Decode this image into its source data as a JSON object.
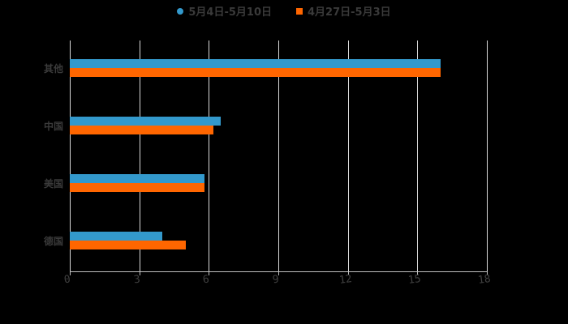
{
  "legend": [
    {
      "label": "5月4日-5月10日",
      "color": "#3399cc",
      "shape": "circle"
    },
    {
      "label": "4月27日-5月3日",
      "color": "#ff6600",
      "shape": "square"
    }
  ],
  "chart_data": {
    "type": "bar",
    "orientation": "horizontal",
    "title": "",
    "categories": [
      "其他",
      "中国",
      "美国",
      "德国"
    ],
    "series": [
      {
        "name": "5月4日-5月10日",
        "color": "#3399cc",
        "values": [
          16,
          6.5,
          5.8,
          4
        ]
      },
      {
        "name": "4月27日-5月3日",
        "color": "#ff6600",
        "values": [
          16,
          6.2,
          5.8,
          5
        ]
      }
    ],
    "xlabel": "",
    "ylabel": "",
    "xlim": [
      0,
      18
    ],
    "xticks": [
      0,
      3,
      6,
      9,
      12,
      15,
      18
    ],
    "grid": true,
    "legend_position": "top"
  }
}
